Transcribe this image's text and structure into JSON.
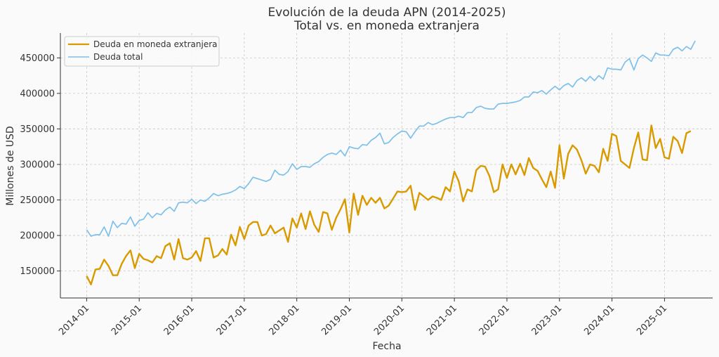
{
  "chart_data": {
    "type": "line",
    "title": "Evolución de la deuda APN (2014-2025)",
    "subtitle": "Total vs. en moneda extranjera",
    "xlabel": "Fecha",
    "ylabel": "Millones de USD",
    "ylim": [
      112000,
      485000
    ],
    "xlim": [
      "2013-07",
      "2025-12"
    ],
    "grid": true,
    "legend_position": "top-left",
    "x_tick_labels": [
      "2014-01",
      "2015-01",
      "2016-01",
      "2017-01",
      "2018-01",
      "2019-01",
      "2020-01",
      "2021-01",
      "2022-01",
      "2023-01",
      "2024-01",
      "2025-01"
    ],
    "y_tick_labels": [
      150000,
      200000,
      250000,
      300000,
      350000,
      400000,
      450000
    ],
    "x_start": "2014-01",
    "x_step": "monthly",
    "series": [
      {
        "name": "Deuda en moneda extranjera",
        "color": "#d99a00",
        "values": [
          143000,
          131000,
          152000,
          153000,
          166000,
          157000,
          144000,
          144000,
          160000,
          171000,
          179000,
          154000,
          174000,
          167000,
          165000,
          162000,
          171000,
          168000,
          185000,
          189000,
          166000,
          195000,
          168000,
          166000,
          169000,
          178000,
          164000,
          196000,
          196000,
          169000,
          172000,
          181000,
          173000,
          201000,
          186000,
          212000,
          195000,
          214000,
          219000,
          219000,
          200000,
          202000,
          214000,
          203000,
          207000,
          211000,
          191000,
          224000,
          211000,
          231000,
          209000,
          234000,
          215000,
          205000,
          233000,
          231000,
          208000,
          225000,
          237000,
          251000,
          204000,
          259000,
          229000,
          256000,
          243000,
          253000,
          246000,
          253000,
          238000,
          242000,
          252000,
          262000,
          261000,
          262000,
          270000,
          236000,
          260000,
          255000,
          250000,
          255000,
          253000,
          250000,
          268000,
          262000,
          290000,
          276000,
          248000,
          265000,
          262000,
          292000,
          298000,
          297000,
          284000,
          261000,
          265000,
          300000,
          281000,
          300000,
          286000,
          301000,
          285000,
          309000,
          295000,
          291000,
          279000,
          268000,
          290000,
          267000,
          327000,
          280000,
          315000,
          327000,
          321000,
          306000,
          287000,
          300000,
          298000,
          289000,
          322000,
          305000,
          343000,
          340000,
          305000,
          300000,
          295000,
          323000,
          345000,
          307000,
          306000,
          355000,
          323000,
          336000,
          310000,
          308000,
          339000,
          333000,
          316000,
          344000,
          347000
        ]
      },
      {
        "name": "Deuda total",
        "color": "#7ec0ea",
        "values": [
          208000,
          199000,
          201000,
          201000,
          212000,
          199000,
          220000,
          211000,
          217000,
          216000,
          226000,
          213000,
          221000,
          223000,
          232000,
          225000,
          231000,
          229000,
          236000,
          240000,
          234000,
          246000,
          247000,
          246000,
          251000,
          245000,
          250000,
          248000,
          253000,
          259000,
          256000,
          258000,
          259000,
          261000,
          264000,
          269000,
          266000,
          273000,
          282000,
          280000,
          278000,
          276000,
          279000,
          292000,
          286000,
          285000,
          290000,
          301000,
          293000,
          297000,
          297000,
          296000,
          301000,
          304000,
          310000,
          314000,
          316000,
          314000,
          320000,
          312000,
          325000,
          323000,
          322000,
          328000,
          327000,
          334000,
          338000,
          344000,
          329000,
          331000,
          338000,
          343000,
          347000,
          346000,
          337000,
          346000,
          354000,
          354000,
          359000,
          356000,
          358000,
          361000,
          364000,
          366000,
          366000,
          368000,
          366000,
          373000,
          373000,
          380000,
          382000,
          379000,
          378000,
          378000,
          385000,
          386000,
          386000,
          387000,
          388000,
          390000,
          395000,
          395000,
          402000,
          401000,
          404000,
          399000,
          405000,
          410000,
          405000,
          411000,
          414000,
          409000,
          418000,
          422000,
          417000,
          424000,
          418000,
          425000,
          420000,
          436000,
          434000,
          434000,
          433000,
          444000,
          449000,
          433000,
          449000,
          454000,
          450000,
          445000,
          457000,
          454000,
          454000,
          453000,
          462000,
          465000,
          460000,
          466000,
          462000,
          474000
        ]
      }
    ]
  }
}
